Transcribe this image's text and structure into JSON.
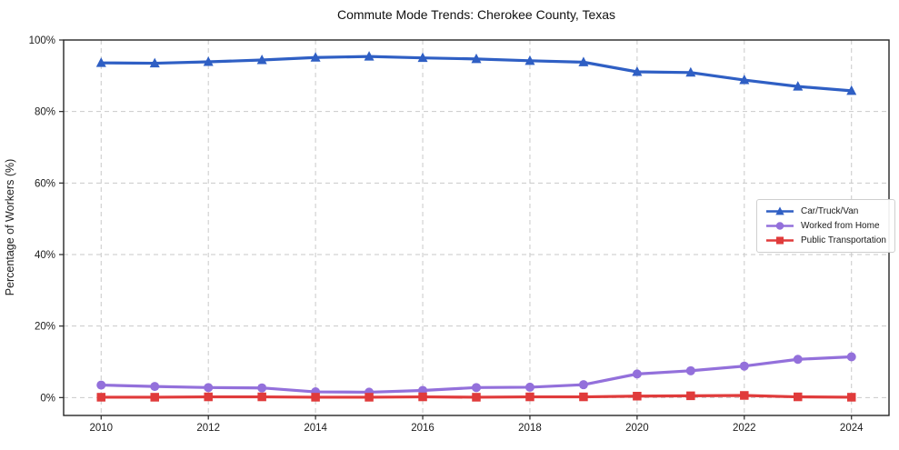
{
  "chart_data": {
    "type": "line",
    "title": "Commute Mode Trends: Cherokee County, Texas",
    "xlabel": "",
    "ylabel": "Percentage of Workers (%)",
    "x": [
      2010,
      2011,
      2012,
      2013,
      2014,
      2015,
      2016,
      2017,
      2018,
      2019,
      2020,
      2021,
      2022,
      2023,
      2024
    ],
    "series": [
      {
        "name": "Car/Truck/Van",
        "marker": "triangle-up",
        "color": "#2f5fc4",
        "values": [
          93.6,
          93.5,
          93.9,
          94.4,
          95.1,
          95.4,
          95.0,
          94.7,
          94.2,
          93.8,
          91.1,
          90.9,
          88.8,
          87.0,
          85.8
        ]
      },
      {
        "name": "Worked from Home",
        "marker": "circle",
        "color": "#9370db",
        "values": [
          3.5,
          3.1,
          2.8,
          2.7,
          1.6,
          1.5,
          2.0,
          2.8,
          2.9,
          3.6,
          6.6,
          7.5,
          8.8,
          10.7,
          11.4
        ]
      },
      {
        "name": "Public Transportation",
        "marker": "square",
        "color": "#e03b3b",
        "values": [
          0.1,
          0.1,
          0.2,
          0.2,
          0.1,
          0.1,
          0.2,
          0.1,
          0.2,
          0.2,
          0.4,
          0.5,
          0.6,
          0.2,
          0.1
        ]
      }
    ],
    "xticks": [
      2010,
      2012,
      2014,
      2016,
      2018,
      2020,
      2022,
      2024
    ],
    "yticks": [
      0,
      20,
      40,
      60,
      80,
      100
    ],
    "ytick_labels": [
      "0%",
      "20%",
      "40%",
      "60%",
      "80%",
      "100%"
    ],
    "xlim": [
      2009.3,
      2024.7
    ],
    "ylim": [
      -5,
      100
    ],
    "grid": true,
    "legend_position": "center-right",
    "background": "#ffffff",
    "grid_color": "#c9c9c9",
    "axis_color": "#262626"
  }
}
